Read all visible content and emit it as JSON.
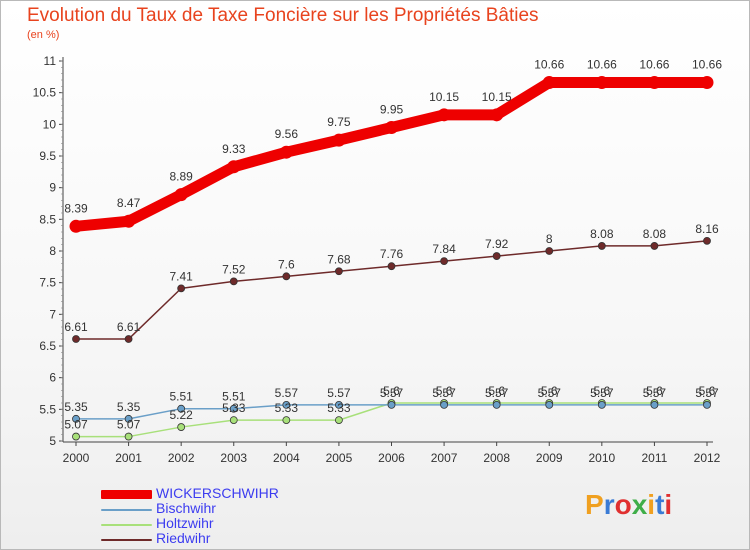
{
  "header": {
    "title": "Evolution du Taux de Taxe Foncière sur les Propriétés Bâties",
    "subtitle": "(en %)"
  },
  "logo": {
    "text": "Proxiti",
    "colors": [
      "#f0a020",
      "#3a7bd5",
      "#e03030",
      "#3fae49",
      "#f0a020",
      "#3a7bd5",
      "#e03030"
    ]
  },
  "chart_data": {
    "type": "line",
    "title": "Evolution du Taux de Taxe Foncière sur les Propriétés Bâties",
    "subtitle": "(en %)",
    "x": [
      "2000",
      "2001",
      "2002",
      "2003",
      "2004",
      "2005",
      "2006",
      "2007",
      "2008",
      "2009",
      "2010",
      "2011",
      "2012"
    ],
    "ylim": [
      5,
      11
    ],
    "yticks": [
      "5",
      "5.5",
      "6",
      "6.5",
      "7",
      "7.5",
      "8",
      "8.5",
      "9",
      "9.5",
      "10",
      "10.5",
      "11"
    ],
    "grid": false,
    "legend_position": "bottom-left",
    "series": [
      {
        "name": "WICKERSCHWIHR",
        "color": "#ee0000",
        "values": [
          8.39,
          8.47,
          8.89,
          9.33,
          9.56,
          9.75,
          9.95,
          10.15,
          10.15,
          10.66,
          10.66,
          10.66,
          10.66
        ],
        "labels": [
          "8.39",
          "8.47",
          "8.89",
          "9.33",
          "9.56",
          "9.75",
          "9.95",
          "10.15",
          "10.15",
          "10.66",
          "10.66",
          "10.66",
          "10.66"
        ]
      },
      {
        "name": "Bischwihr",
        "color": "#6a9fc8",
        "values": [
          5.35,
          5.35,
          5.51,
          5.51,
          5.57,
          5.57,
          5.57,
          5.57,
          5.57,
          5.57,
          5.57,
          5.57,
          5.57
        ],
        "labels": [
          "5.35",
          "5.35",
          "5.51",
          "5.51",
          "5.57",
          "5.57",
          "5.57",
          "5.57",
          "5.57",
          "5.57",
          "5.57",
          "5.57",
          "5.57"
        ]
      },
      {
        "name": "Holtzwihr",
        "color": "#a8e07a",
        "values": [
          5.07,
          5.07,
          5.22,
          5.33,
          5.33,
          5.33,
          5.6,
          5.6,
          5.6,
          5.6,
          5.6,
          5.6,
          5.6
        ],
        "labels": [
          "5.07",
          "5.07",
          "5.22",
          "5.33",
          "5.33",
          "5.33",
          "5.6",
          "5.6",
          "5.6",
          "5.6",
          "5.6",
          "5.6",
          "5.6"
        ]
      },
      {
        "name": "Riedwihr",
        "color": "#6e2a2a",
        "values": [
          6.61,
          6.61,
          7.41,
          7.52,
          7.6,
          7.68,
          7.76,
          7.84,
          7.92,
          8,
          8.08,
          8.08,
          8.16
        ],
        "labels": [
          "6.61",
          "6.61",
          "7.41",
          "7.52",
          "7.6",
          "7.68",
          "7.76",
          "7.84",
          "7.92",
          "8",
          "8.08",
          "8.08",
          "8.16"
        ]
      }
    ]
  }
}
